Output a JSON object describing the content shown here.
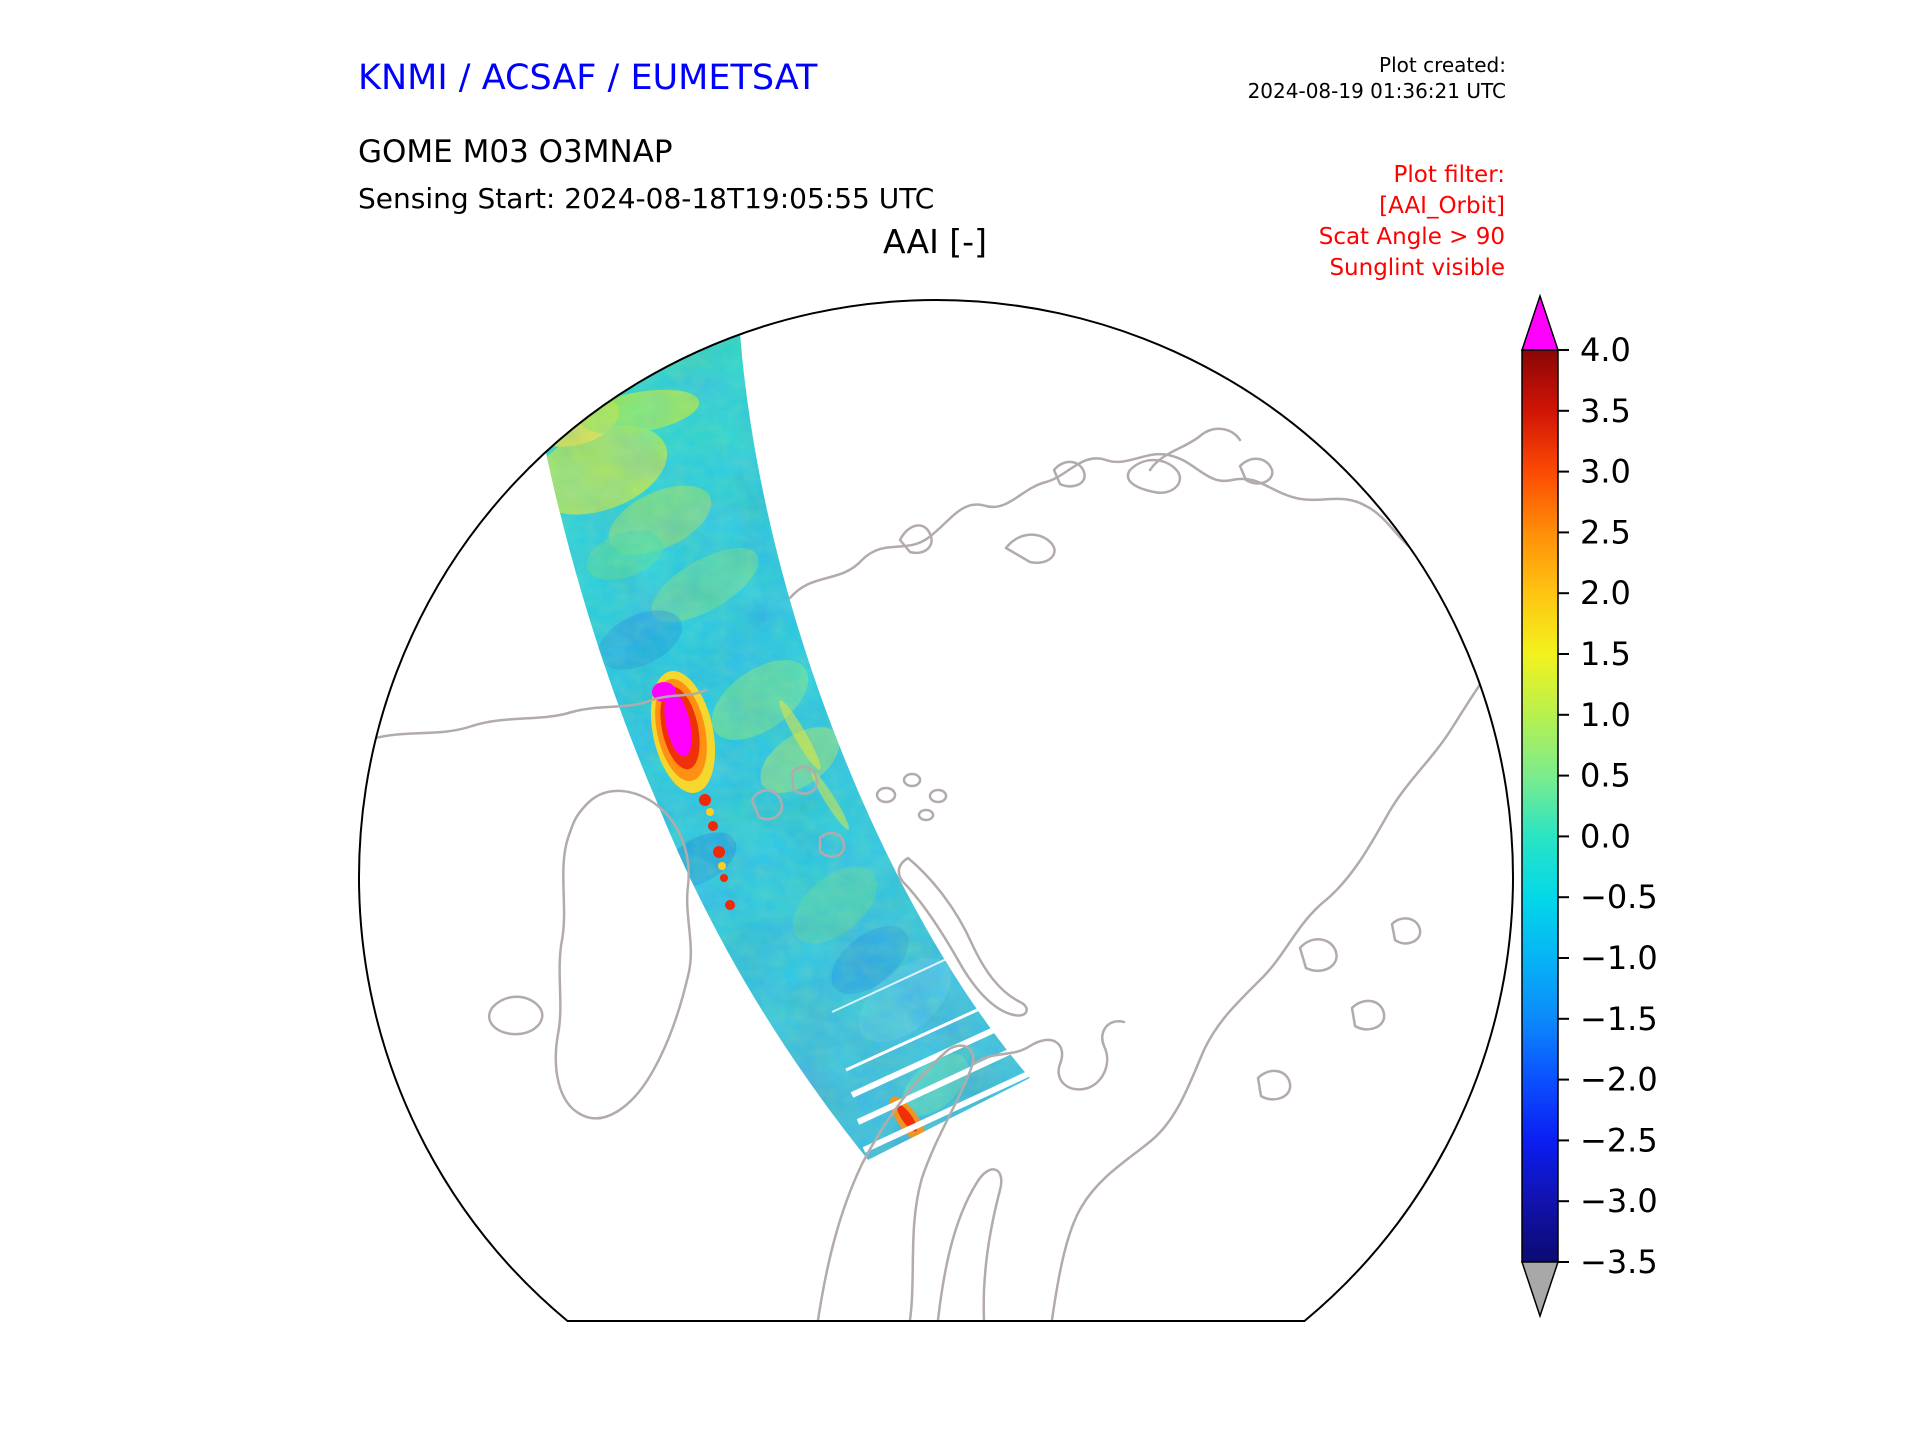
{
  "header": {
    "org_title": "KNMI / ACSAF / EUMETSAT",
    "org_title_color": "#0000ff",
    "plot_created_label": "Plot created:",
    "plot_created_value": "2024-08-19 01:36:21 UTC",
    "product_line": "GOME M03 O3MNAP",
    "sensing_line": "Sensing Start: 2024-08-18T19:05:55 UTC",
    "filter_color": "#ff0000",
    "filter_lines": [
      "Plot filter:",
      "[AAI_Orbit]",
      "Scat Angle > 90",
      "Sunglint visible"
    ]
  },
  "map": {
    "background": "#ffffff",
    "boundary_color": "#000000",
    "coastline_color": "#b3abab"
  },
  "chart_data": {
    "type": "heatmap",
    "title": "AAI [-]",
    "variable": "Absorbing Aerosol Index (AAI), unitless [-]",
    "instrument_product": "GOME M03 O3MNAP",
    "sensing_start": "2024-08-18T19:05:55 UTC",
    "plot_created": "2024-08-19 01:36:21 UTC",
    "plot_filter": [
      "[AAI_Orbit]",
      "Scat Angle > 90",
      "Sunglint visible"
    ],
    "projection": "north polar stereographic; circular map boundary flattened along the bottom edge",
    "map_features": "gray Arctic coastlines (Greenland, Iceland, Scandinavia, Svalbard, Novaya Zemlya, Siberian and North-American coasts)",
    "legend_position": "right vertical colorbar with over/under arrows",
    "swath_summary": {
      "description": "Single GOME-2 (Metop M03) orbit swath crossing the Arctic from the upper-left limb of the map down to the bottom-centre",
      "typical_values": "AAI mostly between -2.0 and +0.5 (cyan / turquoise / green), scattered yellow-green patches up to ~1.5",
      "plume": "strong absorbing-aerosol plume left of centre with AAI > 4 (magenta over-range pixels rimmed by red, orange and yellow), with a trail of red/yellow pixels to the south",
      "gaps": "thin white cross-track data gaps near the southern end of the swath"
    },
    "colorbar": {
      "vmin": -3.5,
      "vmax": 4.0,
      "tick_step": 0.5,
      "ticks": [
        "4.0",
        "3.5",
        "3.0",
        "2.5",
        "2.0",
        "1.5",
        "1.0",
        "0.5",
        "0.0",
        "−0.5",
        "−1.0",
        "−1.5",
        "−2.0",
        "−2.5",
        "−3.0",
        "−3.5"
      ],
      "over_color": "#ff00ff",
      "under_color": "#a8a8a8",
      "stops": [
        {
          "v": -3.5,
          "c": "#0b0b72"
        },
        {
          "v": -3.0,
          "c": "#1212ae"
        },
        {
          "v": -2.5,
          "c": "#0b1ef2"
        },
        {
          "v": -2.0,
          "c": "#0b50ff"
        },
        {
          "v": -1.5,
          "c": "#0c8afa"
        },
        {
          "v": -1.0,
          "c": "#06b4f5"
        },
        {
          "v": -0.5,
          "c": "#04d8e8"
        },
        {
          "v": 0.0,
          "c": "#2ae4c4"
        },
        {
          "v": 0.5,
          "c": "#7cec8c"
        },
        {
          "v": 1.0,
          "c": "#b8f04e"
        },
        {
          "v": 1.5,
          "c": "#f2f21c"
        },
        {
          "v": 2.0,
          "c": "#ffc412"
        },
        {
          "v": 2.5,
          "c": "#ff8e08"
        },
        {
          "v": 3.0,
          "c": "#fc4a04"
        },
        {
          "v": 3.5,
          "c": "#d01406"
        },
        {
          "v": 4.0,
          "c": "#8a0606"
        }
      ]
    }
  }
}
